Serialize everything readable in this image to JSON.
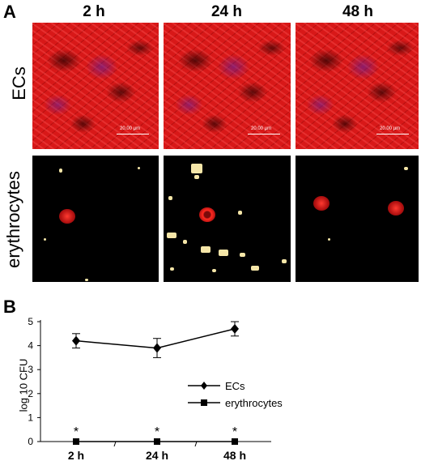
{
  "panel_a": {
    "letter": "A",
    "columns": [
      "2 h",
      "24 h",
      "48 h"
    ],
    "rows": [
      "ECs",
      "erythrocytes"
    ],
    "scale_bar_label": "20.00 µm"
  },
  "panel_b": {
    "letter": "B"
  },
  "chart_data": {
    "type": "line",
    "categories": [
      "2 h",
      "24 h",
      "48 h"
    ],
    "ylabel": "log 10 CFU",
    "xlabel": "",
    "ylim": [
      0,
      5
    ],
    "yticks": [
      "0",
      "1",
      "2",
      "3",
      "4",
      "5"
    ],
    "series": [
      {
        "name": "ECs",
        "values": [
          4.2,
          3.9,
          4.7
        ],
        "errors": [
          0.3,
          0.4,
          0.3
        ],
        "marker": "diamond"
      },
      {
        "name": "erythrocytes",
        "values": [
          0,
          0,
          0
        ],
        "errors": [
          0,
          0,
          0
        ],
        "marker": "square"
      }
    ],
    "annotations": [
      "*",
      "*",
      "*"
    ],
    "legend_position": "right"
  }
}
